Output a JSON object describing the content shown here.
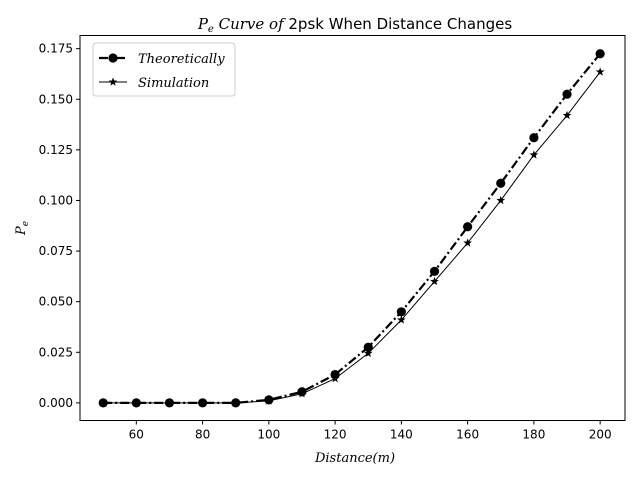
{
  "chart_data": {
    "type": "line",
    "title": {
      "italic_part": "P_e Curve of",
      "normal_part": "2psk When Distance Changes"
    },
    "xlabel": "Distance(m)",
    "ylabel": "P_e",
    "xlim": [
      43,
      207.5
    ],
    "ylim": [
      -0.0087,
      0.1815
    ],
    "x_ticks": [
      60,
      80,
      100,
      120,
      140,
      160,
      180,
      200
    ],
    "y_ticks": [
      0.0,
      0.025,
      0.05,
      0.075,
      0.1,
      0.125,
      0.15,
      0.175
    ],
    "x_tick_labels": [
      "60",
      "80",
      "100",
      "120",
      "140",
      "160",
      "180",
      "200"
    ],
    "y_tick_labels": [
      "0.000",
      "0.025",
      "0.050",
      "0.075",
      "0.100",
      "0.125",
      "0.150",
      "0.175"
    ],
    "x": [
      50,
      60,
      70,
      80,
      90,
      100,
      110,
      120,
      130,
      140,
      150,
      160,
      170,
      180,
      190,
      200
    ],
    "series": [
      {
        "name": "Theoretically",
        "values": [
          0.0,
          0.0,
          0.0,
          0.0,
          0.0,
          0.0015,
          0.0055,
          0.014,
          0.0275,
          0.045,
          0.065,
          0.087,
          0.1085,
          0.131,
          0.1525,
          0.1725
        ],
        "marker": "circle",
        "linestyle": "dashdot",
        "color": "#000000"
      },
      {
        "name": "Simulation",
        "values": [
          0.0,
          0.0,
          0.0,
          0.0,
          0.0,
          0.001,
          0.0045,
          0.012,
          0.0245,
          0.041,
          0.06,
          0.079,
          0.1,
          0.1225,
          0.142,
          0.1635
        ],
        "marker": "star",
        "linestyle": "solid",
        "color": "#000000"
      }
    ],
    "legend": {
      "position": "top-left"
    },
    "grid": false
  }
}
